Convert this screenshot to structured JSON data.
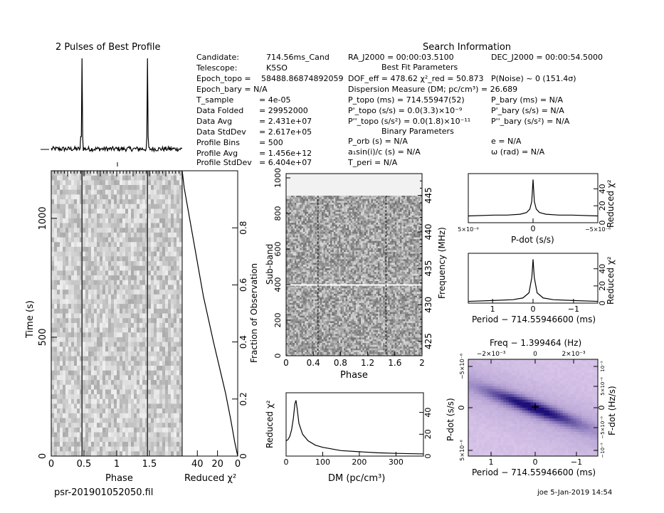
{
  "header": {
    "profile_title": "2 Pulses of Best Profile",
    "search_title": "Search Information",
    "filename": "psr-201901052050.fil",
    "footer": "joe  5-Jan-2019 14:54"
  },
  "info_left": [
    [
      "Candidate:",
      "714.56ms_Cand"
    ],
    [
      "Telescope:",
      "K5SO"
    ],
    [
      "Epoch_topo =",
      "58488.86874892059"
    ],
    [
      "Epoch_bary = N/A",
      ""
    ],
    [
      "T_sample",
      "= 4e-05"
    ],
    [
      "Data Folded",
      "= 29952000"
    ],
    [
      "Data Avg",
      "= 2.431e+07"
    ],
    [
      "Data StdDev",
      "= 2.617e+05"
    ],
    [
      "Profile Bins",
      "= 500"
    ],
    [
      "Profile Avg",
      "= 1.456e+12"
    ],
    [
      "Profile StdDev",
      "= 6.404e+07"
    ]
  ],
  "info_mid": {
    "ra": "RA_J2000 = 00:00:03.5100",
    "best_fit": "Best Fit Parameters",
    "dof": "DOF_eff = 478.62  χ²_red = 50.873",
    "pnoise": "P(Noise) ~ 0   (151.4σ)",
    "dm": "Dispersion Measure (DM; pc/cm³) = 26.689",
    "p_topo": "P_topo (ms) = 714.55947(52)",
    "pd_topo": "P'_topo (s/s) = 0.0(3.3)×10⁻⁹",
    "pdd_topo": "P''_topo (s/s²) = 0.0(1.8)×10⁻¹¹",
    "binary": "Binary Parameters",
    "porb": "P_orb (s) = N/A",
    "asini": "a₁sin(i)/c (s) = N/A",
    "tperi": "T_peri = N/A"
  },
  "info_right": {
    "dec": "DEC_J2000 = 00:00:54.5000",
    "p_bary": "P_bary (ms) = N/A",
    "pd_bary": "P'_bary (s/s) = N/A",
    "pdd_bary": "P''_bary (s/s²) = N/A",
    "e": "e = N/A",
    "omega": "ω (rad) = N/A"
  },
  "chart_data": [
    {
      "type": "line",
      "title": "2 Pulses of Best Profile",
      "x": [
        0,
        0.1,
        0.2,
        0.3,
        0.4,
        0.45,
        0.47,
        0.5,
        0.55,
        0.6,
        0.8,
        1.0,
        1.2,
        1.4,
        1.45,
        1.47,
        1.5,
        1.55,
        1.6,
        1.8,
        2.0
      ],
      "y": [
        0.05,
        0.06,
        0.04,
        0.06,
        0.07,
        0.12,
        1.0,
        0.15,
        0.07,
        0.05,
        0.05,
        0.05,
        0.06,
        0.06,
        0.12,
        1.0,
        0.15,
        0.07,
        0.05,
        0.05,
        0.05
      ]
    },
    {
      "type": "heatmap",
      "xlabel": "Phase",
      "ylabel": "Time (s)",
      "x_ticks": [
        "0",
        "0.5",
        "1",
        "1.5"
      ],
      "y_ticks": [
        "0",
        "500",
        "1000"
      ],
      "xlim": [
        0,
        2
      ],
      "ylim": [
        0,
        1200
      ],
      "pulse_phases": [
        0.47,
        1.47
      ]
    },
    {
      "type": "line",
      "xlabel": "Reduced χ²",
      "ylabel": "Fraction of Observation",
      "x_ticks": [
        "40",
        "20",
        "0"
      ],
      "y_ticks": [
        "0",
        "0.2",
        "0.4",
        "0.6",
        "0.8"
      ],
      "xlim": [
        55,
        0
      ],
      "ylim": [
        0,
        1
      ],
      "x": [
        55,
        54,
        53,
        50,
        46,
        42,
        38,
        34,
        29,
        24,
        18,
        12,
        7,
        3,
        0
      ],
      "y": [
        1.0,
        0.97,
        0.94,
        0.88,
        0.8,
        0.72,
        0.64,
        0.56,
        0.48,
        0.4,
        0.31,
        0.22,
        0.13,
        0.05,
        0.0
      ]
    },
    {
      "type": "heatmap",
      "xlabel": "Phase",
      "ylabel": "Sub-band",
      "y2label": "Frequency (MHz)",
      "x_ticks": [
        "0",
        "0.4",
        "0.8",
        "1.2",
        "1.6",
        "2"
      ],
      "y_ticks": [
        "0",
        "200",
        "400",
        "600",
        "800",
        "1000"
      ],
      "y2_ticks": [
        "425",
        "430",
        "435",
        "440",
        "445"
      ],
      "xlim": [
        0,
        2
      ],
      "ylim": [
        0,
        1024
      ],
      "pulse_phases": [
        0.47,
        1.47
      ]
    },
    {
      "type": "line",
      "xlabel": "DM (pc/cm³)",
      "ylabel": "Reduced χ²",
      "x_ticks": [
        "0",
        "100",
        "200",
        "300"
      ],
      "y_ticks": [
        "0",
        "20",
        "40"
      ],
      "xlim": [
        0,
        375
      ],
      "ylim": [
        0,
        58
      ],
      "x": [
        0,
        5,
        10,
        15,
        20,
        24,
        27,
        30,
        35,
        45,
        60,
        80,
        100,
        150,
        200,
        250,
        300,
        375
      ],
      "y": [
        14,
        15,
        18,
        24,
        35,
        48,
        51,
        44,
        30,
        20,
        14,
        10,
        8,
        5,
        4,
        3,
        2.5,
        2
      ]
    },
    {
      "type": "line",
      "xlabel": "P-dot (s/s)",
      "ylabel": "Reduced χ²",
      "x_ticks": [
        "5×10⁻⁶",
        "0",
        "−5×10⁻⁶"
      ],
      "y_ticks": [
        "0",
        "20",
        "40"
      ],
      "xlim": [
        5,
        -5
      ],
      "ylim": [
        0,
        58
      ],
      "x": [
        5,
        3,
        2,
        1,
        0.5,
        0.25,
        0.1,
        0,
        -0.1,
        -0.25,
        -0.5,
        -1,
        -2,
        -3,
        -5
      ],
      "y": [
        8,
        9,
        9,
        10,
        12,
        16,
        25,
        51,
        25,
        16,
        12,
        10,
        9,
        9,
        8
      ]
    },
    {
      "type": "line",
      "xlabel": "Period − 714.55946600 (ms)",
      "ylabel": "Reduced χ²",
      "x_ticks": [
        "1",
        "0",
        "−1"
      ],
      "y_ticks": [
        "0",
        "20",
        "40"
      ],
      "xlim": [
        1.6,
        -1.6
      ],
      "ylim": [
        0,
        58
      ],
      "x": [
        1.6,
        1,
        0.5,
        0.25,
        0.1,
        0.03,
        0,
        -0.03,
        -0.1,
        -0.25,
        -0.5,
        -1,
        -1.6
      ],
      "y": [
        2,
        3,
        4,
        6,
        12,
        30,
        51,
        30,
        12,
        6,
        4,
        3,
        2
      ]
    },
    {
      "type": "heatmap",
      "title": "Freq − 1.399464 (Hz)",
      "xlabel": "Period − 714.55946600 (ms)",
      "ylabel": "P-dot (s/s)",
      "y2label": "F-dot (Hz/s)",
      "x_ticks": [
        "1",
        "0",
        "−1"
      ],
      "x2_ticks": [
        "−2×10⁻³",
        "0",
        "2×10⁻³"
      ],
      "y_ticks": [
        "5×10⁻⁶",
        "0",
        "−5×10⁻⁶"
      ],
      "y2_ticks": [
        "−10⁻⁵",
        "−5×10⁻⁶",
        "0",
        "5×10⁻⁶",
        "10⁻⁵"
      ],
      "marker": "+"
    }
  ]
}
